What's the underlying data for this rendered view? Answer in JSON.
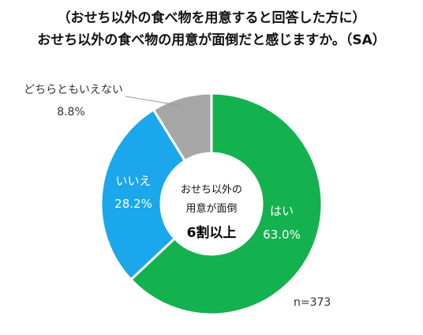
{
  "title_line1": "（おせち以外の食べ物を用意すると回答した方に）",
  "title_line2": "おせち以外の食べ物の用意が面倒だと感じますか。（SA）",
  "center": {
    "line1": "おせち以外の",
    "line2": "用意が面倒",
    "line3": "6割以上"
  },
  "sample_size": "n=373",
  "chart_data": {
    "type": "pie",
    "donut": true,
    "slices": [
      {
        "name": "はい",
        "value": 63.0,
        "label": "63.0%",
        "color": "#14b14f"
      },
      {
        "name": "いいえ",
        "value": 28.2,
        "label": "28.2%",
        "color": "#1aa7ec"
      },
      {
        "name": "どちらともいえない",
        "value": 8.8,
        "label": "8.8%",
        "color": "#a6a6a6"
      }
    ]
  }
}
